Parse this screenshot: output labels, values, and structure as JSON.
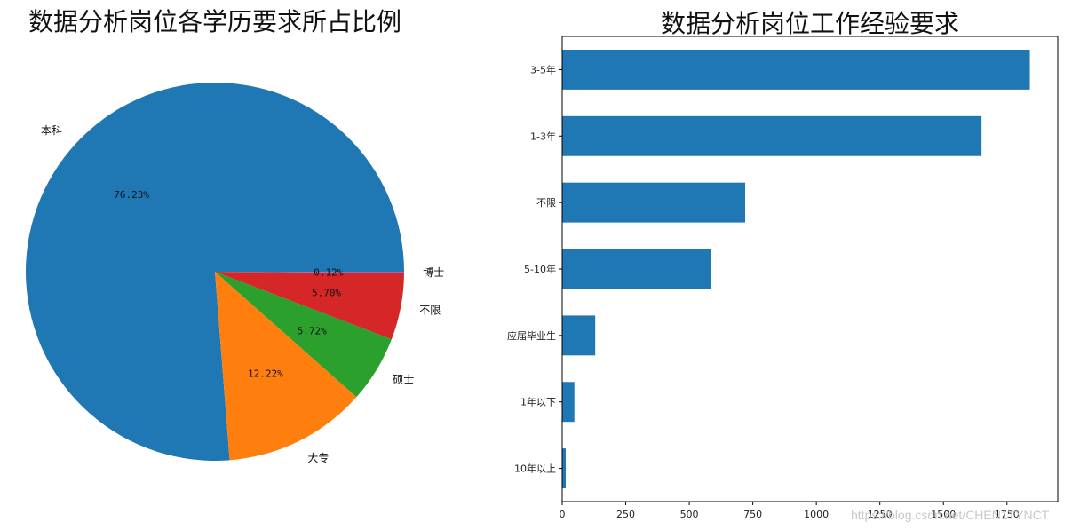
{
  "watermark": "https://blog.csdn.net/CHEN1TYNCT",
  "chart_data": [
    {
      "type": "pie",
      "title": "数据分析岗位各学历要求所占比例",
      "slices": [
        {
          "label": "本科",
          "value": 76.23,
          "pct_label": "76.23%",
          "color": "#1f77b4"
        },
        {
          "label": "大专",
          "value": 12.22,
          "pct_label": "12.22%",
          "color": "#ff7f0e"
        },
        {
          "label": "硕士",
          "value": 5.72,
          "pct_label": "5.72%",
          "color": "#2ca02c"
        },
        {
          "label": "不限",
          "value": 5.7,
          "pct_label": "5.70%",
          "color": "#d62728"
        },
        {
          "label": "博士",
          "value": 0.12,
          "pct_label": "0.12%",
          "color": "#9467bd"
        }
      ]
    },
    {
      "type": "bar",
      "orientation": "horizontal",
      "title": "数据分析岗位工作经验要求",
      "color": "#1f77b4",
      "categories": [
        "3-5年",
        "1-3年",
        "不限",
        "5-10年",
        "应届毕业生",
        "1年以下",
        "10年以上"
      ],
      "values": [
        1840,
        1650,
        720,
        585,
        130,
        48,
        14
      ],
      "xlim": [
        0,
        1950
      ],
      "xticks": [
        0,
        250,
        500,
        750,
        1000,
        1250,
        1500,
        1750
      ],
      "xtick_labels": [
        "0",
        "250",
        "500",
        "750",
        "1000",
        "1250",
        "1500",
        "1750"
      ],
      "grid": false
    }
  ]
}
